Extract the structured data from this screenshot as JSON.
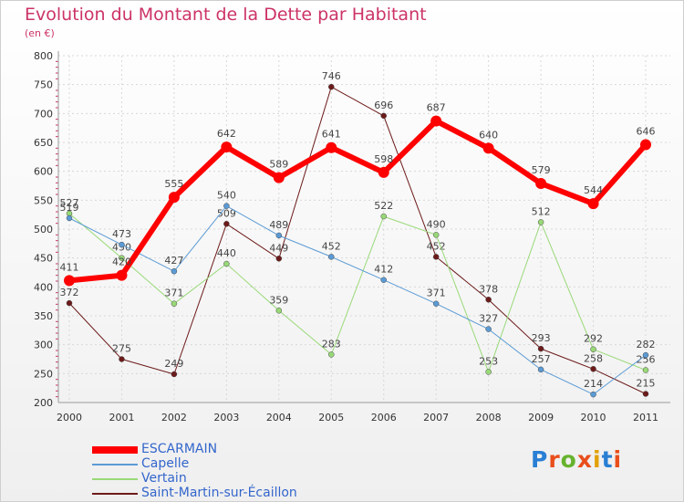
{
  "title": "Evolution du Montant de la Dette par Habitant",
  "unit": "(en €)",
  "logo": {
    "text": "Proxiti",
    "letter_colors": [
      "#2a7fd4",
      "#e94e1b",
      "#66b32e",
      "#e94e1b",
      "#e2a10a",
      "#2a7fd4",
      "#e94e1b"
    ]
  },
  "chart_data": {
    "type": "line",
    "title": "Evolution du Montant de la Dette par Habitant",
    "ylabel": "(en €)",
    "xlabel": "",
    "ylim": [
      200,
      800
    ],
    "ytick_step": 50,
    "grid": true,
    "legend_position": "bottom-left",
    "x": [
      "2000",
      "2001",
      "2002",
      "2003",
      "2004",
      "2005",
      "2006",
      "2007",
      "2008",
      "2009",
      "2010",
      "2011"
    ],
    "series": [
      {
        "name": "Saint-Martin-sur-Écaillon",
        "color": "#6d1a1a",
        "values": [
          372,
          275,
          249,
          509,
          449,
          746,
          696,
          452,
          378,
          293,
          258,
          215
        ],
        "width": 1
      },
      {
        "name": "Vertain",
        "color": "#99d978",
        "values": [
          527,
          450,
          371,
          440,
          359,
          283,
          522,
          490,
          253,
          512,
          292,
          256
        ],
        "width": 1
      },
      {
        "name": "Capelle",
        "color": "#5b9bd5",
        "values": [
          519,
          473,
          427,
          540,
          489,
          452,
          412,
          371,
          327,
          257,
          214,
          282
        ],
        "width": 1
      },
      {
        "name": "ESCARMAIN",
        "color": "#ff0000",
        "values": [
          411,
          420,
          555,
          642,
          589,
          641,
          598,
          687,
          640,
          579,
          544,
          646
        ],
        "width": 6
      }
    ],
    "legend": [
      "ESCARMAIN",
      "Capelle",
      "Vertain",
      "Saint-Martin-sur-Écaillon"
    ]
  }
}
